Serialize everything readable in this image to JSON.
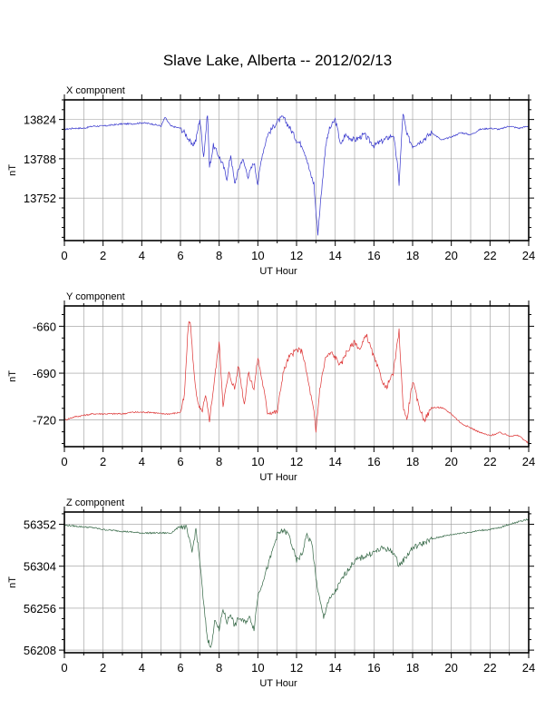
{
  "page": {
    "title": "Slave Lake, Alberta -- 2012/02/13"
  },
  "chart_data": [
    {
      "type": "line",
      "title": "X component",
      "xlabel": "UT Hour",
      "ylabel": "nT",
      "xlim": [
        0,
        24
      ],
      "ylim": [
        13713,
        13842
      ],
      "xticks": [
        0,
        2,
        4,
        6,
        8,
        10,
        12,
        14,
        16,
        18,
        20,
        22,
        24
      ],
      "yticks": [
        13752,
        13788,
        13824
      ],
      "grid": true,
      "color": "#3333cc",
      "series": [
        {
          "x": [
            0,
            0.5,
            1,
            1.5,
            2,
            2.5,
            3,
            3.5,
            4,
            4.5,
            5,
            5.2,
            5.5,
            6,
            6.3,
            6.6,
            6.8,
            7,
            7.2,
            7.4,
            7.5,
            7.7,
            8,
            8.2,
            8.4,
            8.6,
            8.8,
            9,
            9.2,
            9.5,
            9.8,
            10,
            10.2,
            10.5,
            11,
            11.3,
            11.7,
            12,
            12.3,
            12.5,
            12.7,
            12.9,
            13,
            13.1,
            13.3,
            13.5,
            13.7,
            14,
            14.3,
            14.5,
            15,
            15.5,
            16,
            16.5,
            17,
            17.2,
            17.3,
            17.5,
            17.7,
            18,
            18.5,
            19,
            19.5,
            20,
            20.5,
            21,
            21.5,
            22,
            22.5,
            23,
            23.5,
            24
          ],
          "y": [
            13815,
            13816,
            13816,
            13818,
            13818,
            13819,
            13820,
            13820,
            13821,
            13820,
            13818,
            13826,
            13818,
            13816,
            13810,
            13800,
            13805,
            13825,
            13790,
            13830,
            13780,
            13800,
            13790,
            13782,
            13770,
            13792,
            13765,
            13778,
            13788,
            13772,
            13785,
            13765,
            13790,
            13810,
            13822,
            13826,
            13815,
            13805,
            13800,
            13790,
            13775,
            13765,
            13740,
            13720,
            13760,
            13800,
            13815,
            13824,
            13800,
            13810,
            13805,
            13810,
            13800,
            13805,
            13810,
            13785,
            13765,
            13830,
            13810,
            13800,
            13805,
            13812,
            13805,
            13808,
            13812,
            13810,
            13815,
            13816,
            13815,
            13818,
            13816,
            13818
          ]
        }
      ]
    },
    {
      "type": "line",
      "title": "Y component",
      "xlabel": "UT Hour",
      "ylabel": "nT",
      "xlim": [
        0,
        24
      ],
      "ylim": [
        -737,
        -647
      ],
      "xticks": [
        0,
        2,
        4,
        6,
        8,
        10,
        12,
        14,
        16,
        18,
        20,
        22,
        24
      ],
      "yticks": [
        -720,
        -690,
        -660
      ],
      "grid": true,
      "color": "#dd3333",
      "series": [
        {
          "x": [
            0,
            0.5,
            1,
            1.5,
            2,
            2.5,
            3,
            3.5,
            4,
            4.5,
            5,
            5.5,
            6,
            6.2,
            6.4,
            6.5,
            6.7,
            6.9,
            7.1,
            7.3,
            7.5,
            7.7,
            8,
            8.2,
            8.5,
            8.8,
            9,
            9.3,
            9.5,
            9.8,
            10,
            10.3,
            10.5,
            11,
            11.3,
            11.6,
            12,
            12.3,
            12.6,
            12.9,
            13,
            13.2,
            13.5,
            13.8,
            14,
            14.3,
            14.5,
            15,
            15.3,
            15.6,
            16,
            16.3,
            16.6,
            17,
            17.3,
            17.5,
            17.7,
            18,
            18.3,
            18.6,
            19,
            19.5,
            20,
            20.5,
            21,
            21.5,
            22,
            22.5,
            23,
            23.5,
            24
          ],
          "y": [
            -720,
            -718,
            -717,
            -716,
            -716,
            -716,
            -716,
            -715,
            -715,
            -715,
            -716,
            -716,
            -715,
            -705,
            -660,
            -656,
            -690,
            -710,
            -715,
            -705,
            -720,
            -700,
            -670,
            -710,
            -690,
            -700,
            -685,
            -710,
            -690,
            -700,
            -680,
            -700,
            -715,
            -715,
            -690,
            -680,
            -675,
            -676,
            -695,
            -715,
            -728,
            -700,
            -680,
            -677,
            -680,
            -685,
            -678,
            -670,
            -675,
            -665,
            -680,
            -690,
            -700,
            -690,
            -663,
            -710,
            -720,
            -695,
            -710,
            -720,
            -712,
            -712,
            -716,
            -722,
            -725,
            -728,
            -730,
            -728,
            -730,
            -730,
            -735
          ]
        }
      ]
    },
    {
      "type": "line",
      "title": "Z component",
      "xlabel": "UT Hour",
      "ylabel": "nT",
      "xlim": [
        0,
        24
      ],
      "ylim": [
        56205,
        56366
      ],
      "xticks": [
        0,
        2,
        4,
        6,
        8,
        10,
        12,
        14,
        16,
        18,
        20,
        22,
        24
      ],
      "yticks": [
        56208,
        56256,
        56304,
        56352
      ],
      "grid": true,
      "color": "#336644",
      "series": [
        {
          "x": [
            0,
            0.5,
            1,
            1.5,
            2,
            2.5,
            3,
            3.5,
            4,
            4.5,
            5,
            5.5,
            6,
            6.3,
            6.6,
            6.8,
            7,
            7.2,
            7.4,
            7.6,
            7.8,
            8,
            8.2,
            8.4,
            8.6,
            8.8,
            9,
            9.3,
            9.6,
            9.8,
            10,
            10.3,
            10.6,
            11,
            11.3,
            11.6,
            12,
            12.3,
            12.5,
            12.8,
            13,
            13.2,
            13.4,
            13.6,
            14,
            14.5,
            15,
            15.5,
            16,
            16.5,
            17,
            17.3,
            17.5,
            18,
            18.5,
            19,
            19.5,
            20,
            20.5,
            21,
            21.5,
            22,
            22.5,
            23,
            23.5,
            24
          ],
          "y": [
            56351,
            56350,
            56349,
            56348,
            56346,
            56345,
            56344,
            56343,
            56342,
            56342,
            56342,
            56342,
            56350,
            56348,
            56320,
            56347,
            56310,
            56260,
            56220,
            56212,
            56245,
            56230,
            56255,
            56240,
            56250,
            56235,
            56245,
            56240,
            56245,
            56232,
            56270,
            56290,
            56310,
            56340,
            56345,
            56340,
            56310,
            56318,
            56340,
            56330,
            56290,
            56265,
            56245,
            56262,
            56275,
            56295,
            56310,
            56315,
            56320,
            56325,
            56320,
            56305,
            56310,
            56325,
            56330,
            56335,
            56338,
            56340,
            56342,
            56343,
            56345,
            56346,
            56348,
            56352,
            56355,
            56358
          ]
        }
      ]
    }
  ]
}
